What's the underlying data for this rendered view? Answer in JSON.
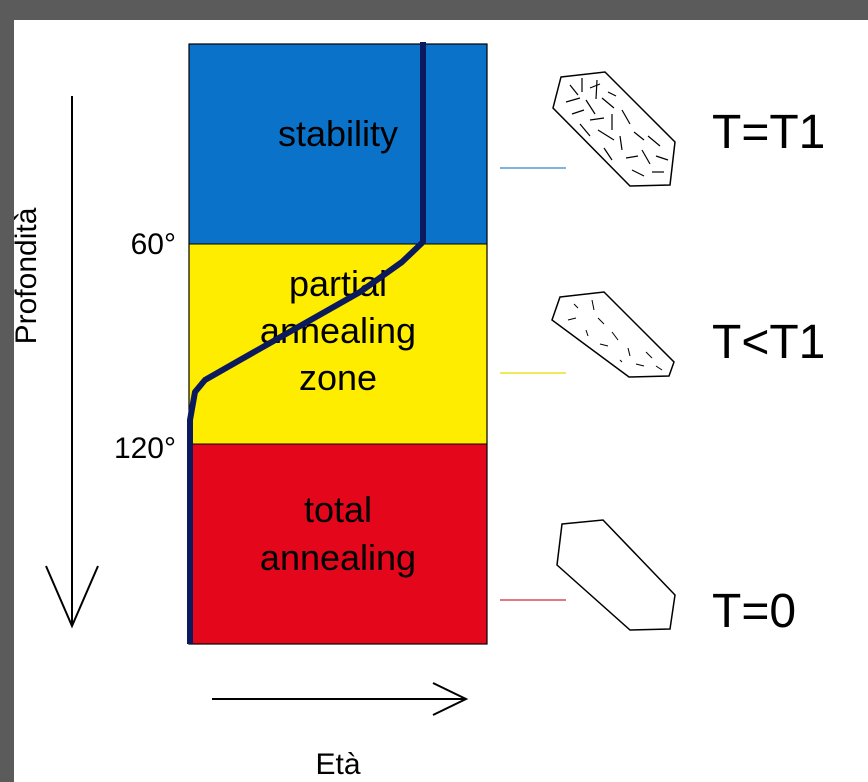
{
  "zones": [
    {
      "name": "stability",
      "lines": [
        "stability"
      ],
      "color": "#0a72c9"
    },
    {
      "name": "partial",
      "lines": [
        "partial",
        "annealing",
        "zone"
      ],
      "color": "#ffed00"
    },
    {
      "name": "total",
      "lines": [
        "total",
        "annealing"
      ],
      "color": "#e4061b"
    }
  ],
  "temperatures": [
    "60°",
    "120°"
  ],
  "axes": {
    "vertical": "Profondità",
    "horizontal": "Età"
  },
  "labels": [
    "T=T1",
    "T<T1",
    "T=0"
  ],
  "colors": {
    "curve": "#0b1a5c",
    "stability_tick": "#7fb4df",
    "partial_tick": "#f0ea5a",
    "total_tick": "#e07a80"
  },
  "icons": [
    "dense-tracks-crystal-icon",
    "sparse-tracks-crystal-icon",
    "empty-crystal-icon"
  ]
}
